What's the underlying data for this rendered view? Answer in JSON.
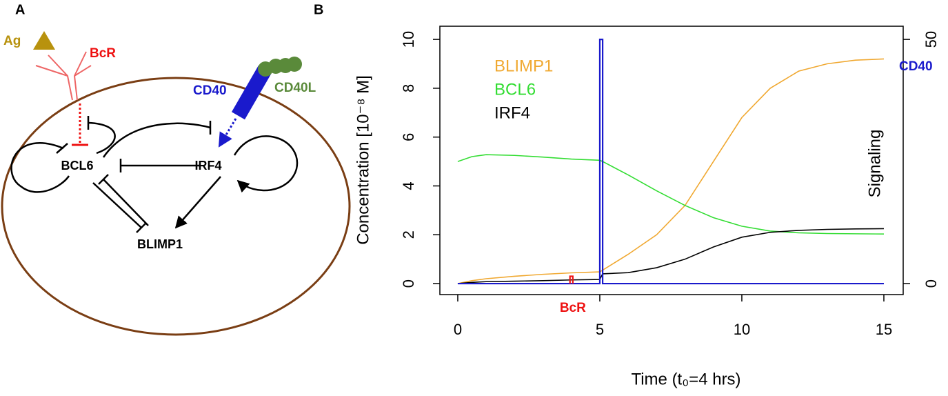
{
  "diagram": {
    "label": "A",
    "ligand": "Ag",
    "receptor": "BcR",
    "cd40": "CD40",
    "cd40l": "CD40L",
    "nodes": [
      "BCL6",
      "IRF4",
      "BLIMP1"
    ]
  },
  "chart_data": {
    "type": "line",
    "label": "B",
    "xlabel": "Time (t₀=4 hrs)",
    "ylabel": "Concentration [10⁻⁸ M]",
    "y2label": "Signaling",
    "xlim": [
      -0.63,
      15.68
    ],
    "ylim": [
      -0.45,
      10.54
    ],
    "y2lim": [
      -2.25,
      52.7
    ],
    "xticks": [
      0,
      5,
      10,
      15
    ],
    "yticks": [
      0,
      2,
      4,
      6,
      8,
      10
    ],
    "y2ticks": [
      0,
      50
    ],
    "legend": "top-left",
    "series": [
      {
        "name": "BLIMP1",
        "color": "#f0a830",
        "x": [
          0,
          0.5,
          1,
          2,
          3,
          4,
          5,
          5.1,
          6,
          7,
          8,
          9,
          10,
          11,
          12,
          13,
          14,
          15
        ],
        "values": [
          0,
          0.12,
          0.2,
          0.3,
          0.38,
          0.44,
          0.48,
          0.55,
          1.2,
          2.0,
          3.2,
          5.0,
          6.8,
          8.0,
          8.7,
          9.0,
          9.15,
          9.2
        ]
      },
      {
        "name": "BCL6",
        "color": "#33dd33",
        "x": [
          0,
          0.5,
          1,
          2,
          3,
          4,
          5,
          5.1,
          6,
          7,
          8,
          9,
          10,
          11,
          12,
          13,
          14,
          15
        ],
        "values": [
          5.0,
          5.2,
          5.28,
          5.25,
          5.18,
          5.1,
          5.05,
          5.0,
          4.45,
          3.8,
          3.2,
          2.7,
          2.35,
          2.15,
          2.08,
          2.05,
          2.04,
          2.03
        ]
      },
      {
        "name": "IRF4",
        "color": "#000000",
        "x": [
          0,
          0.5,
          1,
          2,
          3,
          4,
          5,
          5.1,
          6,
          7,
          8,
          9,
          10,
          11,
          12,
          13,
          14,
          15
        ],
        "values": [
          0,
          0.05,
          0.08,
          0.1,
          0.12,
          0.15,
          0.17,
          0.4,
          0.45,
          0.65,
          1.0,
          1.5,
          1.9,
          2.1,
          2.18,
          2.22,
          2.24,
          2.25
        ]
      },
      {
        "name": "CD40",
        "color": "#1a1acc",
        "axis": "y2",
        "x": [
          0,
          5,
          5,
          5.1,
          5.1,
          15
        ],
        "values": [
          0,
          0,
          50,
          50,
          0,
          0
        ]
      },
      {
        "name": "BcR",
        "color": "#ee1111",
        "axis": "y2",
        "x": [
          3.95,
          3.95,
          4.05,
          4.05
        ],
        "values": [
          0,
          1.5,
          1.5,
          0
        ]
      }
    ]
  }
}
